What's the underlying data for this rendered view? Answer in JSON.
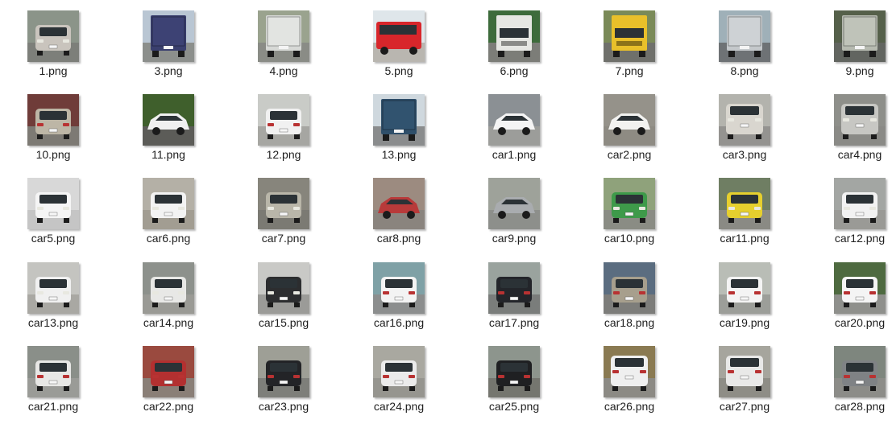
{
  "files": [
    {
      "name": "1.png",
      "kind": "suv",
      "body": "#c9c4bd",
      "bg": "#8b9489",
      "road": "#7d7f7a",
      "view": "front"
    },
    {
      "name": "3.png",
      "kind": "bus",
      "body": "#3a3f6e",
      "bg": "#b9c6d3",
      "road": "#8c8f8c",
      "view": "rear"
    },
    {
      "name": "4.png",
      "kind": "truck",
      "body": "#d7d9d6",
      "bg": "#9aa38e",
      "road": "#8a8c86",
      "view": "rear"
    },
    {
      "name": "5.png",
      "kind": "bus",
      "body": "#d8262b",
      "bg": "#dfe6ea",
      "road": "#b9b6b0",
      "view": "side"
    },
    {
      "name": "6.png",
      "kind": "truck",
      "body": "#e6e7e3",
      "bg": "#3d6b3b",
      "road": "#7c7d78",
      "view": "front"
    },
    {
      "name": "7.png",
      "kind": "truck",
      "body": "#e9c02a",
      "bg": "#7a8a58",
      "road": "#6f706b",
      "view": "front"
    },
    {
      "name": "8.png",
      "kind": "truck",
      "body": "#c4c8cb",
      "bg": "#9fb0b8",
      "road": "#6e7275",
      "view": "rear"
    },
    {
      "name": "9.png",
      "kind": "truck",
      "body": "#b6bab0",
      "bg": "#55604a",
      "road": "#626560",
      "view": "rear"
    },
    {
      "name": "10.png",
      "kind": "sedan",
      "body": "#bdb6a6",
      "bg": "#6f3c39",
      "road": "#7d7a74",
      "view": "rear"
    },
    {
      "name": "11.png",
      "kind": "sedan",
      "body": "#f0f0f0",
      "bg": "#3f5f2c",
      "road": "#5c5c58",
      "view": "side"
    },
    {
      "name": "12.png",
      "kind": "suv",
      "body": "#f1f1f1",
      "bg": "#c9cbc7",
      "road": "#a6a6a2",
      "view": "rear"
    },
    {
      "name": "13.png",
      "kind": "truck",
      "body": "#2f4f6a",
      "bg": "#cfd8de",
      "road": "#8a8c8d",
      "view": "rear"
    },
    {
      "name": "car1.png",
      "kind": "sedan",
      "body": "#f4f4f4",
      "bg": "#8b9094",
      "road": "#9c9d9a",
      "view": "side"
    },
    {
      "name": "car2.png",
      "kind": "sedan",
      "body": "#f2f2f0",
      "bg": "#95928a",
      "road": "#8e8b83",
      "view": "side"
    },
    {
      "name": "car3.png",
      "kind": "van",
      "body": "#d9d6cf",
      "bg": "#b3b3ad",
      "road": "#949390",
      "view": "front"
    },
    {
      "name": "car4.png",
      "kind": "van",
      "body": "#c7c7c3",
      "bg": "#8e8f8a",
      "road": "#8a8a86",
      "view": "front"
    },
    {
      "name": "car5.png",
      "kind": "sedan",
      "body": "#f5f5f5",
      "bg": "#d8d8d8",
      "road": "#c5c5c5",
      "view": "front"
    },
    {
      "name": "car6.png",
      "kind": "hatch",
      "body": "#f3f3f3",
      "bg": "#b4b0a6",
      "road": "#a29d92",
      "view": "front"
    },
    {
      "name": "car7.png",
      "kind": "hatch",
      "body": "#b9b6a9",
      "bg": "#87857c",
      "road": "#7b7a73",
      "view": "front"
    },
    {
      "name": "car8.png",
      "kind": "sedan",
      "body": "#b83a3a",
      "bg": "#9c8b80",
      "road": "#8a847e",
      "view": "side"
    },
    {
      "name": "car9.png",
      "kind": "van",
      "body": "#a9acaf",
      "bg": "#9ea29a",
      "road": "#8d8f8b",
      "view": "side"
    },
    {
      "name": "car10.png",
      "kind": "sedan",
      "body": "#3e9a4a",
      "bg": "#8fa27b",
      "road": "#8a8c84",
      "view": "front"
    },
    {
      "name": "car11.png",
      "kind": "hatch",
      "body": "#e6cf2e",
      "bg": "#6f7e63",
      "road": "#8a8a84",
      "view": "front"
    },
    {
      "name": "car12.png",
      "kind": "sedan",
      "body": "#f2f2f2",
      "bg": "#a3a6a3",
      "road": "#9a9a96",
      "view": "front"
    },
    {
      "name": "car13.png",
      "kind": "suv",
      "body": "#f0f0f0",
      "bg": "#c4c4c0",
      "road": "#a9a8a3",
      "view": "front"
    },
    {
      "name": "car14.png",
      "kind": "suv",
      "body": "#e8e8e6",
      "bg": "#8d918c",
      "road": "#9a9a95",
      "view": "front"
    },
    {
      "name": "car15.png",
      "kind": "suv",
      "body": "#2c2d2f",
      "bg": "#c9c9c6",
      "road": "#9b9b98",
      "view": "front"
    },
    {
      "name": "car16.png",
      "kind": "suv",
      "body": "#f3f3f3",
      "bg": "#7fa1a6",
      "road": "#8c8e8e",
      "view": "rear"
    },
    {
      "name": "car17.png",
      "kind": "suv",
      "body": "#23252a",
      "bg": "#9aa39e",
      "road": "#7a7d7b",
      "view": "rear"
    },
    {
      "name": "car18.png",
      "kind": "suv",
      "body": "#a79f8d",
      "bg": "#5b6d80",
      "road": "#7d7d7a",
      "view": "rear"
    },
    {
      "name": "car19.png",
      "kind": "suv",
      "body": "#f4f4f4",
      "bg": "#b9bdb6",
      "road": "#9c9e99",
      "view": "rear"
    },
    {
      "name": "car20.png",
      "kind": "suv",
      "body": "#f4f4f4",
      "bg": "#4e6a40",
      "road": "#8f908c",
      "view": "rear"
    },
    {
      "name": "car21.png",
      "kind": "suv",
      "body": "#e7e7e5",
      "bg": "#8a8f89",
      "road": "#9a9b97",
      "view": "rear"
    },
    {
      "name": "car22.png",
      "kind": "hatch",
      "body": "#b33030",
      "bg": "#9a4a3f",
      "road": "#8a7f77",
      "view": "rear"
    },
    {
      "name": "car23.png",
      "kind": "suv",
      "body": "#232427",
      "bg": "#9e9f96",
      "road": "#7e7f7a",
      "view": "rear"
    },
    {
      "name": "car24.png",
      "kind": "suv",
      "body": "#ebebeb",
      "bg": "#a9a8a0",
      "road": "#96958f",
      "view": "rear"
    },
    {
      "name": "car25.png",
      "kind": "suv",
      "body": "#1f2022",
      "bg": "#8d958d",
      "road": "#75766f",
      "view": "rear"
    },
    {
      "name": "car26.png",
      "kind": "van",
      "body": "#efefef",
      "bg": "#8a7a52",
      "road": "#8c8a84",
      "view": "rear"
    },
    {
      "name": "car27.png",
      "kind": "van",
      "body": "#e9e9e8",
      "bg": "#a6a59d",
      "road": "#8e8d86",
      "view": "rear"
    },
    {
      "name": "car28.png",
      "kind": "suv",
      "body": "#7f8285",
      "bg": "#7e867e",
      "road": "#8c8c88",
      "view": "rear"
    }
  ]
}
